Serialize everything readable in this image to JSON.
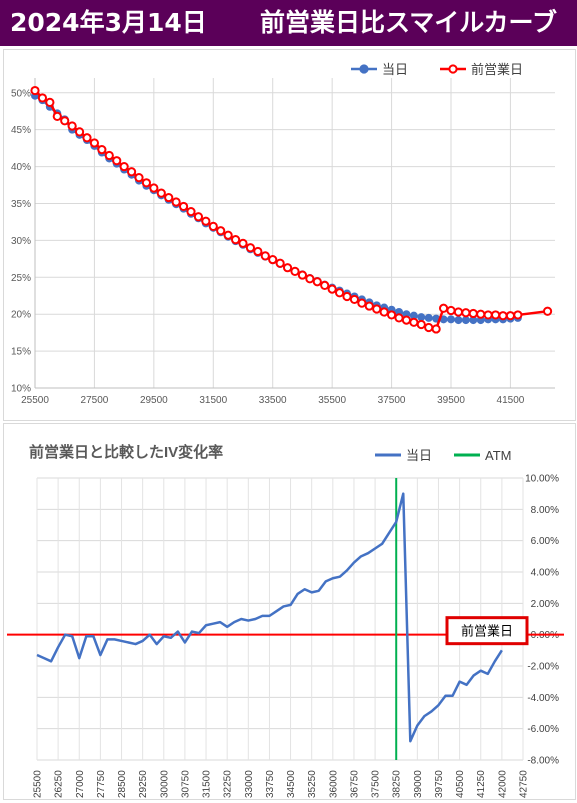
{
  "header": {
    "date": "2024年3月14日",
    "title": "前営業日比スマイルカーブ"
  },
  "colors": {
    "header_bg": "#5b0059",
    "today": "#4472c4",
    "prev": "#ff0000",
    "atm": "#00b050",
    "zero": "#ff0000",
    "line2": "#4472c4"
  },
  "chart_data": [
    {
      "type": "line",
      "legend": {
        "position": "top-right",
        "entries": [
          "当日",
          "前営業日"
        ]
      },
      "ylim": [
        0.1,
        0.52
      ],
      "ytick_labels": [
        "10%",
        "15%",
        "20%",
        "25%",
        "30%",
        "35%",
        "40%",
        "45%",
        "50%"
      ],
      "xlim": [
        25500,
        43000
      ],
      "xtick_labels": [
        "25500",
        "27500",
        "29500",
        "31500",
        "33500",
        "35500",
        "37500",
        "39500",
        "41500"
      ],
      "grid": true,
      "series": [
        {
          "name": "当日",
          "x": [
            25500,
            25750,
            26000,
            26250,
            26500,
            26750,
            27000,
            27250,
            27500,
            27750,
            28000,
            28250,
            28500,
            28750,
            29000,
            29250,
            29500,
            29750,
            30000,
            30250,
            30500,
            30750,
            31000,
            31250,
            31500,
            31750,
            32000,
            32250,
            32500,
            32750,
            33000,
            33250,
            33500,
            33750,
            34000,
            34250,
            34500,
            34750,
            35000,
            35250,
            35500,
            35750,
            36000,
            36250,
            36500,
            36750,
            37000,
            37250,
            37500,
            37750,
            38000,
            38250,
            38500,
            38750,
            39000,
            39250,
            39500,
            39750,
            40000,
            40250,
            40500,
            40750,
            41000,
            41250,
            41500,
            41750
          ],
          "values": [
            0.496,
            0.49,
            0.481,
            0.472,
            0.464,
            0.45,
            0.443,
            0.436,
            0.428,
            0.419,
            0.411,
            0.404,
            0.396,
            0.389,
            0.381,
            0.374,
            0.368,
            0.361,
            0.355,
            0.349,
            0.343,
            0.336,
            0.33,
            0.323,
            0.317,
            0.311,
            0.305,
            0.299,
            0.294,
            0.288,
            0.283,
            0.278,
            0.273,
            0.268,
            0.263,
            0.258,
            0.254,
            0.249,
            0.245,
            0.24,
            0.236,
            0.232,
            0.228,
            0.224,
            0.22,
            0.216,
            0.212,
            0.209,
            0.206,
            0.203,
            0.2,
            0.198,
            0.196,
            0.195,
            0.194,
            0.193,
            0.193,
            0.192,
            0.192,
            0.192,
            0.192,
            0.193,
            0.193,
            0.193,
            0.194,
            0.195
          ]
        },
        {
          "name": "前営業日",
          "x": [
            25500,
            25750,
            26000,
            26250,
            26500,
            26750,
            27000,
            27250,
            27500,
            27750,
            28000,
            28250,
            28500,
            28750,
            29000,
            29250,
            29500,
            29750,
            30000,
            30250,
            30500,
            30750,
            31000,
            31250,
            31500,
            31750,
            32000,
            32250,
            32500,
            32750,
            33000,
            33250,
            33500,
            33750,
            34000,
            34250,
            34500,
            34750,
            35000,
            35250,
            35500,
            35750,
            36000,
            36250,
            36500,
            36750,
            37000,
            37250,
            37500,
            37750,
            38000,
            38250,
            38500,
            38750,
            39000,
            39250,
            39500,
            39750,
            40000,
            40250,
            40500,
            40750,
            41000,
            41250,
            41500,
            41750,
            42750
          ],
          "values": [
            0.503,
            0.493,
            0.487,
            0.468,
            0.462,
            0.455,
            0.447,
            0.439,
            0.432,
            0.423,
            0.415,
            0.408,
            0.4,
            0.393,
            0.385,
            0.378,
            0.371,
            0.364,
            0.358,
            0.352,
            0.346,
            0.339,
            0.332,
            0.326,
            0.319,
            0.313,
            0.307,
            0.301,
            0.296,
            0.29,
            0.285,
            0.279,
            0.274,
            0.269,
            0.263,
            0.258,
            0.253,
            0.248,
            0.244,
            0.239,
            0.234,
            0.229,
            0.224,
            0.22,
            0.215,
            0.211,
            0.207,
            0.203,
            0.199,
            0.195,
            0.192,
            0.189,
            0.186,
            0.182,
            0.18,
            0.208,
            0.205,
            0.203,
            0.202,
            0.201,
            0.2,
            0.199,
            0.199,
            0.198,
            0.198,
            0.199,
            0.204
          ]
        }
      ]
    },
    {
      "type": "line",
      "title": "前営業日と比較したIV変化率",
      "legend": {
        "position": "top-right",
        "entries": [
          "当日",
          "ATM"
        ]
      },
      "ylim": [
        -0.08,
        0.1
      ],
      "ytick_labels": [
        "10.00%",
        "8.00%",
        "6.00%",
        "4.00%",
        "2.00%",
        "0.00%",
        "-2.00%",
        "-4.00%",
        "-6.00%",
        "-8.00%"
      ],
      "xlim": [
        25500,
        42750
      ],
      "xtick_labels": [
        "25500",
        "26250",
        "27000",
        "27750",
        "28500",
        "29250",
        "30000",
        "30750",
        "31500",
        "32250",
        "33000",
        "33750",
        "34500",
        "35250",
        "36000",
        "36750",
        "37500",
        "38250",
        "39000",
        "39750",
        "40500",
        "41250",
        "42000",
        "42750"
      ],
      "grid": true,
      "atm_x": 38250,
      "zero_line_label": "前営業日",
      "series": [
        {
          "name": "当日",
          "x": [
            25500,
            25750,
            26000,
            26250,
            26500,
            26750,
            27000,
            27250,
            27500,
            27750,
            28000,
            28250,
            28500,
            28750,
            29000,
            29250,
            29500,
            29750,
            30000,
            30250,
            30500,
            30750,
            31000,
            31250,
            31500,
            31750,
            32000,
            32250,
            32500,
            32750,
            33000,
            33250,
            33500,
            33750,
            34000,
            34250,
            34500,
            34750,
            35000,
            35250,
            35500,
            35750,
            36000,
            36250,
            36500,
            36750,
            37000,
            37250,
            37500,
            37750,
            38000,
            38250,
            38500,
            38750,
            39000,
            39250,
            39500,
            39750,
            40000,
            40250,
            40500,
            40750,
            41000,
            41250,
            41500,
            41750,
            42000
          ],
          "values": [
            -0.013,
            -0.015,
            -0.017,
            -0.008,
            0.0,
            -0.001,
            -0.015,
            -0.001,
            -0.001,
            -0.013,
            -0.003,
            -0.003,
            -0.004,
            -0.005,
            -0.006,
            -0.004,
            0.0,
            -0.006,
            -0.001,
            -0.002,
            0.002,
            -0.005,
            0.002,
            0.001,
            0.006,
            0.007,
            0.008,
            0.005,
            0.008,
            0.01,
            0.009,
            0.01,
            0.012,
            0.012,
            0.015,
            0.018,
            0.019,
            0.026,
            0.029,
            0.027,
            0.028,
            0.034,
            0.036,
            0.037,
            0.041,
            0.046,
            0.05,
            0.052,
            0.055,
            0.058,
            0.065,
            0.072,
            0.09,
            -0.068,
            -0.058,
            -0.052,
            -0.049,
            -0.045,
            -0.039,
            -0.039,
            -0.03,
            -0.032,
            -0.026,
            -0.023,
            -0.025,
            -0.017,
            -0.01
          ]
        }
      ]
    }
  ]
}
